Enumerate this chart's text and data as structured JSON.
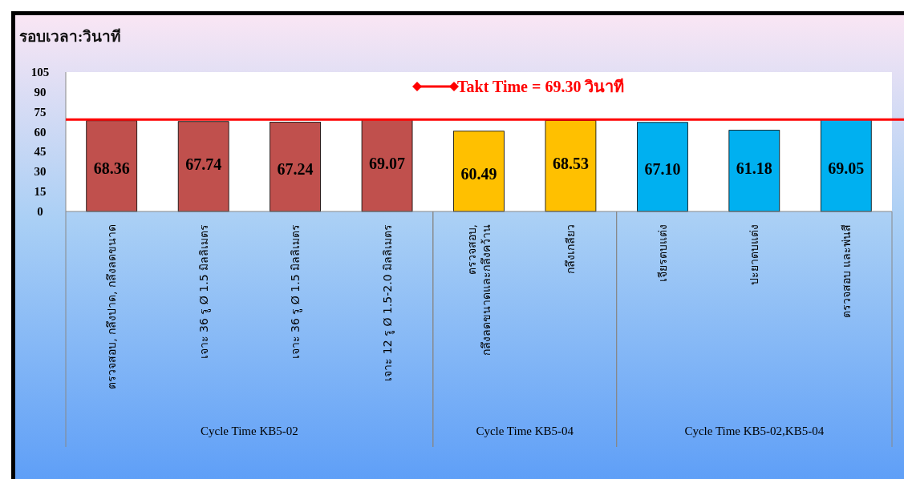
{
  "chart_data": {
    "type": "bar",
    "ylabel": "รอบเวลา:วินาที",
    "categories": [
      "ตรวจสอบ, กลึงปาด, กลึงลดขนาด",
      "เจาะ 36 รู Ø 1.5 มิลลิเมตร",
      "เจาะ 36 รู Ø 1.5 มิลลิเมตร",
      "เจาะ 12 รู Ø 1.5-2.0 มิลลิเมตร",
      "ตรวจสอบ, กลึงลดขนาดและกลึงคว้าน",
      "กลึงเกลียว",
      "เจียรตบแต่ง",
      "ปะยาตบแต่ง",
      "ตรวจสอบ และพ่นสี"
    ],
    "series": [
      {
        "colors": [
          "#c0504d",
          "#c0504d",
          "#c0504d",
          "#c0504d",
          "#ffc000",
          "#ffc000",
          "#00b0f0",
          "#00b0f0",
          "#00b0f0"
        ],
        "values": [
          68.36,
          67.74,
          67.24,
          69.07,
          60.49,
          68.53,
          67.1,
          61.18,
          69.05
        ],
        "value_labels": [
          "68.36",
          "67.74",
          "67.24",
          "69.07",
          "60.49",
          "68.53",
          "67.10",
          "61.18",
          "69.05"
        ]
      }
    ],
    "annotations": [
      "Cycle Time KB5-02",
      "Cycle Time KB5-04",
      "Cycle Time KB5-02,KB5-04"
    ],
    "ylim": [
      0,
      105
    ],
    "yticks": [
      0,
      15,
      30,
      45,
      60,
      75,
      90,
      105
    ],
    "ref_lines": [
      {
        "axis": "y",
        "value": 69.3,
        "label": "Takt Time = 69.30 วินาที",
        "color": "#ff0000",
        "line_style": "solid"
      }
    ],
    "marker": "diamond",
    "legend": "top"
  }
}
